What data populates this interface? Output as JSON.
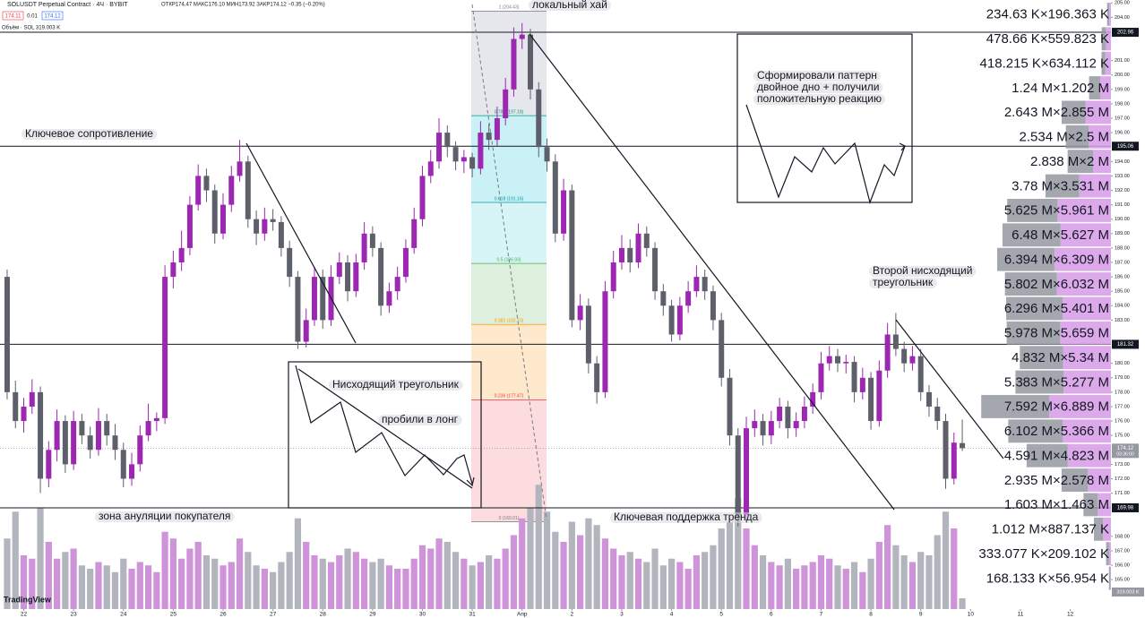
{
  "header": {
    "symbol": "SOLUSDT Perpetual Contract · 4Ч · BYBIT",
    "ohlc": "ОТКР174.47 МАКС176.10 МИН173.92 ЗАКР174.12 −0.35 (−0.20%)",
    "bid": "174.11",
    "spread": "0.01",
    "ask": "174.12",
    "volume": "Объём · SOL 319.003 K"
  },
  "chart_data": {
    "type": "candlestick",
    "ylim": [
      162.96,
      205.2
    ],
    "xlim": [
      -0.86,
      137
    ],
    "volume_lim": [
      0,
      8000
    ],
    "grid": false,
    "up_color": "#9c27b0",
    "down_color": "#5d606b",
    "volume_up_color": "#ce93d8",
    "volume_down_color": "#b2b5be",
    "candles": [
      [
        186,
        186.5,
        177.5,
        178
      ],
      [
        178,
        178.8,
        175.5,
        176
      ],
      [
        176,
        177.6,
        175.2,
        177
      ],
      [
        177,
        178.9,
        176.5,
        178
      ],
      [
        178,
        178.4,
        171,
        172
      ],
      [
        172,
        174.6,
        171.4,
        174
      ],
      [
        174,
        176.8,
        173.2,
        176
      ],
      [
        176,
        176.4,
        172.4,
        173
      ],
      [
        173,
        176.7,
        172.6,
        176
      ],
      [
        176,
        176.5,
        174.4,
        175
      ],
      [
        175,
        175.6,
        173.4,
        174
      ],
      [
        174,
        176.9,
        173.6,
        176
      ],
      [
        176,
        176.5,
        174.3,
        175
      ],
      [
        175,
        175.8,
        173.3,
        174
      ],
      [
        174,
        174.5,
        171.4,
        172
      ],
      [
        172,
        173.8,
        171.5,
        173
      ],
      [
        173,
        175.7,
        172.5,
        175
      ],
      [
        175,
        177.2,
        174.6,
        176
      ],
      [
        176,
        176.6,
        175.3,
        176.2
      ],
      [
        176.2,
        186.8,
        175.8,
        186
      ],
      [
        186,
        187.8,
        185.2,
        187
      ],
      [
        187,
        189.2,
        186.4,
        188
      ],
      [
        188,
        191.6,
        187.5,
        191
      ],
      [
        191,
        193.8,
        190.6,
        193
      ],
      [
        193,
        193.5,
        191.2,
        192
      ],
      [
        192,
        192.4,
        188.3,
        189
      ],
      [
        189,
        191.8,
        188.6,
        191
      ],
      [
        191,
        193.7,
        190.5,
        193
      ],
      [
        193,
        195.5,
        192.6,
        194
      ],
      [
        194,
        194.4,
        189.4,
        190
      ],
      [
        190,
        190.6,
        188.2,
        189
      ],
      [
        189,
        190.8,
        188.5,
        190
      ],
      [
        190,
        190.7,
        189.2,
        189.8
      ],
      [
        189.8,
        190.2,
        187.4,
        188
      ],
      [
        188,
        188.5,
        185.3,
        186
      ],
      [
        186,
        186.4,
        181,
        181.5
      ],
      [
        181.5,
        183.8,
        181.1,
        183
      ],
      [
        183,
        186.7,
        182.6,
        186
      ],
      [
        186,
        186.5,
        182.4,
        183
      ],
      [
        183,
        186.8,
        182.6,
        186
      ],
      [
        186,
        187.7,
        185.5,
        187
      ],
      [
        187,
        187.5,
        184.3,
        185
      ],
      [
        185,
        187.6,
        184.6,
        187
      ],
      [
        187,
        189.8,
        186.5,
        189
      ],
      [
        189,
        189.5,
        187.4,
        188
      ],
      [
        188,
        188.4,
        183.3,
        184
      ],
      [
        184,
        185.6,
        183.5,
        185
      ],
      [
        185,
        186.7,
        184.4,
        186
      ],
      [
        186,
        188.6,
        185.6,
        188
      ],
      [
        188,
        190.8,
        187.6,
        190
      ],
      [
        190,
        193.7,
        189.5,
        193
      ],
      [
        193,
        194.8,
        192.5,
        194
      ],
      [
        194,
        197,
        193.5,
        196
      ],
      [
        196,
        196.5,
        194.3,
        195
      ],
      [
        195,
        195.4,
        193.4,
        194
      ],
      [
        194,
        194.8,
        193.2,
        194.3
      ],
      [
        194.3,
        194.6,
        192.9,
        193.5
      ],
      [
        193.5,
        196.8,
        193.1,
        196
      ],
      [
        196,
        196.6,
        194.8,
        195.5
      ],
      [
        195.5,
        197.8,
        195.1,
        197
      ],
      [
        197,
        199.8,
        196.5,
        199
      ],
      [
        199,
        203.3,
        198.5,
        202.5
      ],
      [
        202.5,
        203.6,
        201.8,
        202.8
      ],
      [
        202.8,
        203.2,
        198.3,
        199
      ],
      [
        199,
        199.5,
        194.3,
        195
      ],
      [
        195,
        195.6,
        193.3,
        194
      ],
      [
        194,
        194.5,
        188.4,
        189
      ],
      [
        189,
        192.8,
        188.5,
        192
      ],
      [
        192,
        192.4,
        182.5,
        183
      ],
      [
        183,
        184.8,
        182.3,
        184
      ],
      [
        184,
        184.5,
        179.3,
        180
      ],
      [
        180,
        180.5,
        177.2,
        178
      ],
      [
        178,
        185.7,
        177.6,
        185
      ],
      [
        185,
        187.8,
        184.5,
        187
      ],
      [
        187,
        188.9,
        186.5,
        188
      ],
      [
        188,
        188.6,
        186.3,
        187
      ],
      [
        187,
        189.7,
        186.6,
        189
      ],
      [
        189,
        189.5,
        187.4,
        188
      ],
      [
        188,
        188.4,
        184.4,
        185
      ],
      [
        185,
        185.5,
        183.3,
        184
      ],
      [
        184,
        184.4,
        181.5,
        182
      ],
      [
        182,
        184.6,
        181.6,
        184
      ],
      [
        184,
        185.7,
        183.5,
        185
      ],
      [
        185,
        186.8,
        184.6,
        186
      ],
      [
        186,
        186.5,
        184.4,
        185
      ],
      [
        185,
        185.4,
        182.3,
        183
      ],
      [
        183,
        183.5,
        178.4,
        179
      ],
      [
        179,
        179.6,
        174.3,
        175
      ],
      [
        175,
        175.5,
        168.7,
        169.5
      ],
      [
        169.5,
        176.3,
        169.1,
        175.5
      ],
      [
        175.5,
        176.8,
        174.9,
        176
      ],
      [
        176,
        176.5,
        174.3,
        175
      ],
      [
        175,
        176.7,
        174.4,
        176
      ],
      [
        176,
        177.6,
        175.5,
        177
      ],
      [
        177,
        177.4,
        174.8,
        175.5
      ],
      [
        175.5,
        176.6,
        174.9,
        176
      ],
      [
        176,
        177.7,
        175.5,
        177
      ],
      [
        177,
        178.6,
        176.5,
        178
      ],
      [
        178,
        180.8,
        177.5,
        180
      ],
      [
        180,
        181.2,
        179.5,
        180.5
      ],
      [
        180.5,
        181,
        179.4,
        180
      ],
      [
        180,
        180.6,
        179.3,
        180.1
      ],
      [
        180.1,
        180.5,
        177.3,
        178
      ],
      [
        178,
        179.7,
        177.5,
        179
      ],
      [
        179,
        179.4,
        175.4,
        176
      ],
      [
        176,
        180.2,
        175.6,
        179.5
      ],
      [
        179.5,
        182.8,
        179,
        182
      ],
      [
        182,
        183.5,
        180.5,
        181
      ],
      [
        181,
        181.5,
        179.4,
        180
      ],
      [
        180,
        181.2,
        179.5,
        180.5
      ],
      [
        180.5,
        181,
        177.4,
        178
      ],
      [
        178,
        178.5,
        176.3,
        177
      ],
      [
        177,
        177.6,
        175.4,
        176
      ],
      [
        176,
        176.5,
        171.3,
        172
      ],
      [
        172,
        175.2,
        171.6,
        174.5
      ],
      [
        174.47,
        176.1,
        173.92,
        174.12
      ]
    ],
    "volumes": [
      2100,
      2900,
      1600,
      1500,
      3000,
      2000,
      1500,
      1700,
      1800,
      1300,
      1200,
      1400,
      1300,
      1100,
      1500,
      1200,
      1400,
      1300,
      1100,
      2300,
      2100,
      1500,
      1800,
      2000,
      1600,
      1500,
      1300,
      1400,
      2100,
      1700,
      1300,
      1200,
      1100,
      1400,
      1700,
      2700,
      2000,
      1600,
      1500,
      1400,
      1600,
      1800,
      1700,
      1500,
      1400,
      1500,
      1300,
      1200,
      1200,
      1500,
      1900,
      1800,
      2100,
      2000,
      1700,
      1500,
      1300,
      1400,
      1600,
      1500,
      1800,
      2200,
      2700,
      3000,
      3700,
      2900,
      2300,
      2000,
      2600,
      2200,
      2700,
      2500,
      2100,
      1800,
      1600,
      1700,
      1500,
      1400,
      1800,
      1300,
      1500,
      1400,
      1200,
      1600,
      1700,
      1900,
      2400,
      2600,
      3300,
      2400,
      1900,
      1600,
      1400,
      1300,
      1500,
      1200,
      1300,
      1400,
      1600,
      1500,
      1300,
      1200,
      1400,
      1100,
      1500,
      2000,
      2500,
      1900,
      1600,
      1400,
      1700,
      1600,
      2200,
      2900,
      2400,
      319.003
    ],
    "last_volume_label": "319.003 K",
    "xticks": [
      {
        "value": 2,
        "label": "22"
      },
      {
        "value": 8,
        "label": "23"
      },
      {
        "value": 14,
        "label": "24"
      },
      {
        "value": 20,
        "label": "25"
      },
      {
        "value": 26,
        "label": "26"
      },
      {
        "value": 32,
        "label": "27"
      },
      {
        "value": 38,
        "label": "28"
      },
      {
        "value": 44,
        "label": "29"
      },
      {
        "value": 50,
        "label": "30"
      },
      {
        "value": 56,
        "label": "31"
      },
      {
        "value": 62,
        "label": "Апр"
      },
      {
        "value": 68,
        "label": "2"
      },
      {
        "value": 74,
        "label": "3"
      },
      {
        "value": 80,
        "label": "4"
      },
      {
        "value": 86,
        "label": "5"
      },
      {
        "value": 92,
        "label": "6"
      },
      {
        "value": 98,
        "label": "7"
      },
      {
        "value": 104,
        "label": "8"
      },
      {
        "value": 110,
        "label": "9"
      },
      {
        "value": 116,
        "label": "10"
      },
      {
        "value": 122,
        "label": "11"
      },
      {
        "value": 128,
        "label": "12"
      }
    ],
    "yticks": [
      {
        "value": 165,
        "label": "165.00"
      },
      {
        "value": 166,
        "label": "166.00"
      },
      {
        "value": 167,
        "label": "167.00"
      },
      {
        "value": 168,
        "label": "168.00"
      },
      {
        "value": 171,
        "label": "171.00"
      },
      {
        "value": 172,
        "label": "172.00"
      },
      {
        "value": 173,
        "label": "173.00"
      },
      {
        "value": 175,
        "label": "175.00"
      },
      {
        "value": 176,
        "label": "176.00"
      },
      {
        "value": 177,
        "label": "177.00"
      },
      {
        "value": 178,
        "label": "178.00"
      },
      {
        "value": 179,
        "label": "179.00"
      },
      {
        "value": 180,
        "label": "180.00"
      },
      {
        "value": 183,
        "label": "183.00"
      },
      {
        "value": 184,
        "label": "184.00"
      },
      {
        "value": 185,
        "label": "185.00"
      },
      {
        "value": 186,
        "label": "186.00"
      },
      {
        "value": 187,
        "label": "187.00"
      },
      {
        "value": 188,
        "label": "188.00"
      },
      {
        "value": 189,
        "label": "189.00"
      },
      {
        "value": 190,
        "label": "190.00"
      },
      {
        "value": 191,
        "label": "191.00"
      },
      {
        "value": 192,
        "label": "192.00"
      },
      {
        "value": 193,
        "label": "193.00"
      },
      {
        "value": 194,
        "label": "194.00"
      },
      {
        "value": 196,
        "label": "196.00"
      },
      {
        "value": 197,
        "label": "197.00"
      },
      {
        "value": 198,
        "label": "198.00"
      },
      {
        "value": 199,
        "label": "199.00"
      },
      {
        "value": 200,
        "label": "200.00"
      },
      {
        "value": 201,
        "label": "201.00"
      },
      {
        "value": 204,
        "label": "204.00"
      },
      {
        "value": 205,
        "label": "205.00"
      }
    ],
    "levels": [
      {
        "value": 202.96,
        "label": "202.96"
      },
      {
        "value": 195.06,
        "label": "195.06"
      },
      {
        "value": 181.32,
        "label": "181.32"
      },
      {
        "value": 169.98,
        "label": "169.98"
      }
    ],
    "last_price": {
      "value": 174.12,
      "label": "174.12",
      "countdown": "03:36:00"
    },
    "fib": [
      {
        "value": 204.43,
        "label": "1 (204.43)",
        "color": "#787b86",
        "band": "#dfe1e8"
      },
      {
        "value": 197.18,
        "label": "0.786 (197.18)",
        "color": "#089981",
        "band": "#bdeef3"
      },
      {
        "value": 191.16,
        "label": "0.618 (191.16)",
        "color": "#0097a7",
        "band": "#cdf2f5"
      },
      {
        "value": 186.93,
        "label": "0.5 (186.93)",
        "color": "#4caf50",
        "band": "#d4ecd4"
      },
      {
        "value": 182.7,
        "label": "0.382 (182.70)",
        "color": "#ff9800",
        "band": "#ffe3c0"
      },
      {
        "value": 177.47,
        "label": "0.236 (177.47)",
        "color": "#f23645",
        "band": "#fbd3d6"
      },
      {
        "value": 169.01,
        "label": "0 (169.01)",
        "color": "#787b86"
      }
    ],
    "profile": {
      "separator": "×",
      "sell_color": "#9598a1",
      "buy_color": "#d69ae8",
      "rows": [
        {
          "sell": 234630,
          "sell_label": "234.63 K",
          "buy": 196363,
          "buy_label": "196.363 K"
        },
        {
          "sell": 478660,
          "sell_label": "478.66 K",
          "buy": 559823,
          "buy_label": "559.823 K"
        },
        {
          "sell": 418215,
          "sell_label": "418.215 K",
          "buy": 634112,
          "buy_label": "634.112 K"
        },
        {
          "sell": 1240000,
          "sell_label": "1.24 M",
          "buy": 1202000,
          "buy_label": "1.202 M"
        },
        {
          "sell": 2643000,
          "sell_label": "2.643 M",
          "buy": 2855000,
          "buy_label": "2.855 M"
        },
        {
          "sell": 2534000,
          "sell_label": "2.534 M",
          "buy": 2500000,
          "buy_label": "2.5 M"
        },
        {
          "sell": 2838000,
          "sell_label": "2.838 M",
          "buy": 2000000,
          "buy_label": "2 M"
        },
        {
          "sell": 3780000,
          "sell_label": "3.78 M",
          "buy": 3531000,
          "buy_label": "3.531 M"
        },
        {
          "sell": 5625000,
          "sell_label": "5.625 M",
          "buy": 5961000,
          "buy_label": "5.961 M"
        },
        {
          "sell": 6480000,
          "sell_label": "6.48 M",
          "buy": 5627000,
          "buy_label": "5.627 M"
        },
        {
          "sell": 6394000,
          "sell_label": "6.394 M",
          "buy": 6309000,
          "buy_label": "6.309 M"
        },
        {
          "sell": 5802000,
          "sell_label": "5.802 M",
          "buy": 6032000,
          "buy_label": "6.032 M"
        },
        {
          "sell": 6296000,
          "sell_label": "6.296 M",
          "buy": 5401000,
          "buy_label": "5.401 M"
        },
        {
          "sell": 5978000,
          "sell_label": "5.978 M",
          "buy": 5659000,
          "buy_label": "5.659 M"
        },
        {
          "sell": 4832000,
          "sell_label": "4.832 M",
          "buy": 5340000,
          "buy_label": "5.34 M"
        },
        {
          "sell": 5383000,
          "sell_label": "5.383 M",
          "buy": 5277000,
          "buy_label": "5.277 M"
        },
        {
          "sell": 7592000,
          "sell_label": "7.592 M",
          "buy": 6889000,
          "buy_label": "6.889 M"
        },
        {
          "sell": 6102000,
          "sell_label": "6.102 M",
          "buy": 5366000,
          "buy_label": "5.366 M"
        },
        {
          "sell": 4591000,
          "sell_label": "4.591 M",
          "buy": 4823000,
          "buy_label": "4.823 M"
        },
        {
          "sell": 2935000,
          "sell_label": "2.935 M",
          "buy": 2578000,
          "buy_label": "2.578 M"
        },
        {
          "sell": 1603000,
          "sell_label": "1.603 M",
          "buy": 1463000,
          "buy_label": "1.463 M"
        },
        {
          "sell": 1012000,
          "sell_label": "1.012 M",
          "buy": 887137,
          "buy_label": "887.137 K"
        },
        {
          "sell": 333077,
          "sell_label": "333.077 K",
          "buy": 209102,
          "buy_label": "209.102 K"
        },
        {
          "sell": 168133,
          "sell_label": "168.133 K",
          "buy": 56954,
          "buy_label": "56.954 K"
        }
      ]
    },
    "annotations": [
      [
        "локальный хай"
      ],
      [
        "Ключевое сопротивление"
      ],
      [
        "Сформировали паттерн",
        "двойное дно + получили",
        "положительную реакцию"
      ],
      [
        "Второй нисходящий",
        "треугольник"
      ],
      [
        "Нисходящий треугольник"
      ],
      [
        "пробили в лонг"
      ],
      [
        "зона ануляции покупателя"
      ],
      [
        "Ключевая поддержка тренда"
      ]
    ]
  },
  "branding": "TradingView"
}
